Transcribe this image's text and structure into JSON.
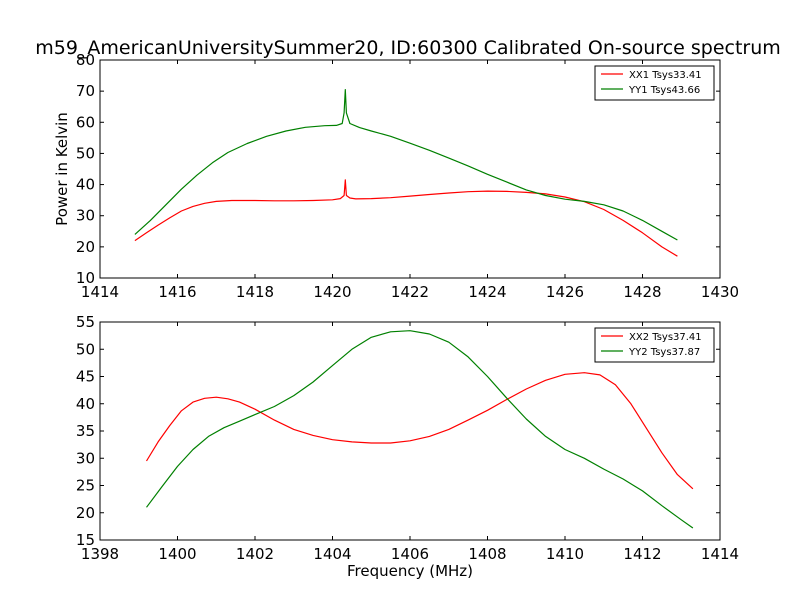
{
  "figure": {
    "title": "m59_AmericanUniversitySummer20, ID:60300 Calibrated On-source spectrum"
  },
  "chart_data": [
    {
      "type": "line",
      "title": "m59_AmericanUniversitySummer20, ID:60300 Calibrated On-source spectrum",
      "xlabel": "",
      "ylabel": "Power in Kelvin",
      "xlim": [
        1414,
        1430
      ],
      "ylim": [
        10,
        80
      ],
      "xticks": [
        1414,
        1416,
        1418,
        1420,
        1422,
        1424,
        1426,
        1428,
        1430
      ],
      "yticks": [
        10,
        20,
        30,
        40,
        50,
        60,
        70,
        80
      ],
      "grid": false,
      "legend_position": "top-right",
      "series": [
        {
          "name": "XX1 Tsys33.41",
          "color": "#ff0000",
          "x": [
            1414.9,
            1415.2,
            1415.5,
            1415.8,
            1416.1,
            1416.4,
            1416.7,
            1417.0,
            1417.4,
            1418.0,
            1418.5,
            1419.0,
            1419.5,
            1420.0,
            1420.2,
            1420.3,
            1420.33,
            1420.36,
            1420.45,
            1420.6,
            1421.0,
            1421.5,
            1422.0,
            1422.5,
            1423.0,
            1423.5,
            1424.0,
            1424.5,
            1425.0,
            1425.5,
            1426.0,
            1426.5,
            1427.0,
            1427.5,
            1428.0,
            1428.5,
            1428.9
          ],
          "y": [
            22,
            24.5,
            27,
            29.3,
            31.5,
            33,
            34,
            34.6,
            34.9,
            34.9,
            34.8,
            34.8,
            34.9,
            35.1,
            35.5,
            36.5,
            41.5,
            36.5,
            35.7,
            35.4,
            35.5,
            35.8,
            36.3,
            36.8,
            37.3,
            37.7,
            37.9,
            37.8,
            37.5,
            37,
            36,
            34.5,
            32,
            28.5,
            24.5,
            20,
            17
          ]
        },
        {
          "name": "YY1 Tsys43.66",
          "color": "#008000",
          "x": [
            1414.9,
            1415.3,
            1415.7,
            1416.1,
            1416.5,
            1416.9,
            1417.3,
            1417.8,
            1418.3,
            1418.8,
            1419.3,
            1419.8,
            1420.1,
            1420.25,
            1420.3,
            1420.33,
            1420.36,
            1420.45,
            1420.7,
            1421.0,
            1421.5,
            1422.0,
            1422.5,
            1423.0,
            1423.5,
            1424.0,
            1424.5,
            1425.0,
            1425.5,
            1426.0,
            1426.5,
            1427.0,
            1427.5,
            1428.0,
            1428.5,
            1428.9
          ],
          "y": [
            24,
            28.5,
            33.5,
            38.5,
            43,
            47,
            50.3,
            53.2,
            55.5,
            57.2,
            58.4,
            58.9,
            59,
            59.6,
            63,
            70.5,
            63,
            59.6,
            58.3,
            57.2,
            55.5,
            53.3,
            51,
            48.5,
            46,
            43.3,
            40.8,
            38.3,
            36.5,
            35.3,
            34.6,
            33.5,
            31.5,
            28.5,
            25,
            22.2
          ]
        }
      ]
    },
    {
      "type": "line",
      "title": "",
      "xlabel": "Frequency (MHz)",
      "ylabel": "",
      "xlim": [
        1398,
        1414
      ],
      "ylim": [
        15,
        55
      ],
      "xticks": [
        1398,
        1400,
        1402,
        1404,
        1406,
        1408,
        1410,
        1412,
        1414
      ],
      "yticks": [
        15,
        20,
        25,
        30,
        35,
        40,
        45,
        50,
        55
      ],
      "grid": false,
      "legend_position": "top-right",
      "series": [
        {
          "name": "XX2 Tsys37.41",
          "color": "#ff0000",
          "x": [
            1399.2,
            1399.5,
            1399.8,
            1400.1,
            1400.4,
            1400.7,
            1401.0,
            1401.3,
            1401.6,
            1402.0,
            1402.5,
            1403.0,
            1403.5,
            1404.0,
            1404.5,
            1405.0,
            1405.5,
            1406.0,
            1406.5,
            1407.0,
            1407.5,
            1408.0,
            1408.5,
            1409.0,
            1409.5,
            1410.0,
            1410.5,
            1410.9,
            1411.3,
            1411.7,
            1412.1,
            1412.5,
            1412.9,
            1413.3
          ],
          "y": [
            29.5,
            33,
            36,
            38.7,
            40.3,
            41,
            41.2,
            40.9,
            40.3,
            39,
            37,
            35.3,
            34.2,
            33.4,
            33,
            32.8,
            32.8,
            33.2,
            34,
            35.3,
            37,
            38.8,
            40.8,
            42.7,
            44.3,
            45.4,
            45.7,
            45.3,
            43.5,
            40,
            35.5,
            31,
            27,
            24.4
          ]
        },
        {
          "name": "YY2 Tsys37.87",
          "color": "#008000",
          "x": [
            1399.2,
            1399.6,
            1400.0,
            1400.4,
            1400.8,
            1401.2,
            1401.6,
            1402.0,
            1402.5,
            1403.0,
            1403.5,
            1404.0,
            1404.5,
            1405.0,
            1405.5,
            1406.0,
            1406.5,
            1407.0,
            1407.5,
            1408.0,
            1408.5,
            1409.0,
            1409.5,
            1410.0,
            1410.5,
            1411.0,
            1411.5,
            1412.0,
            1412.5,
            1413.0,
            1413.3
          ],
          "y": [
            21,
            24.8,
            28.5,
            31.6,
            34,
            35.6,
            36.8,
            38,
            39.5,
            41.5,
            44,
            47,
            50,
            52.2,
            53.2,
            53.4,
            52.8,
            51.3,
            48.6,
            45,
            41,
            37.2,
            34,
            31.6,
            30,
            28,
            26.2,
            24,
            21.3,
            18.7,
            17.2
          ]
        }
      ]
    }
  ]
}
